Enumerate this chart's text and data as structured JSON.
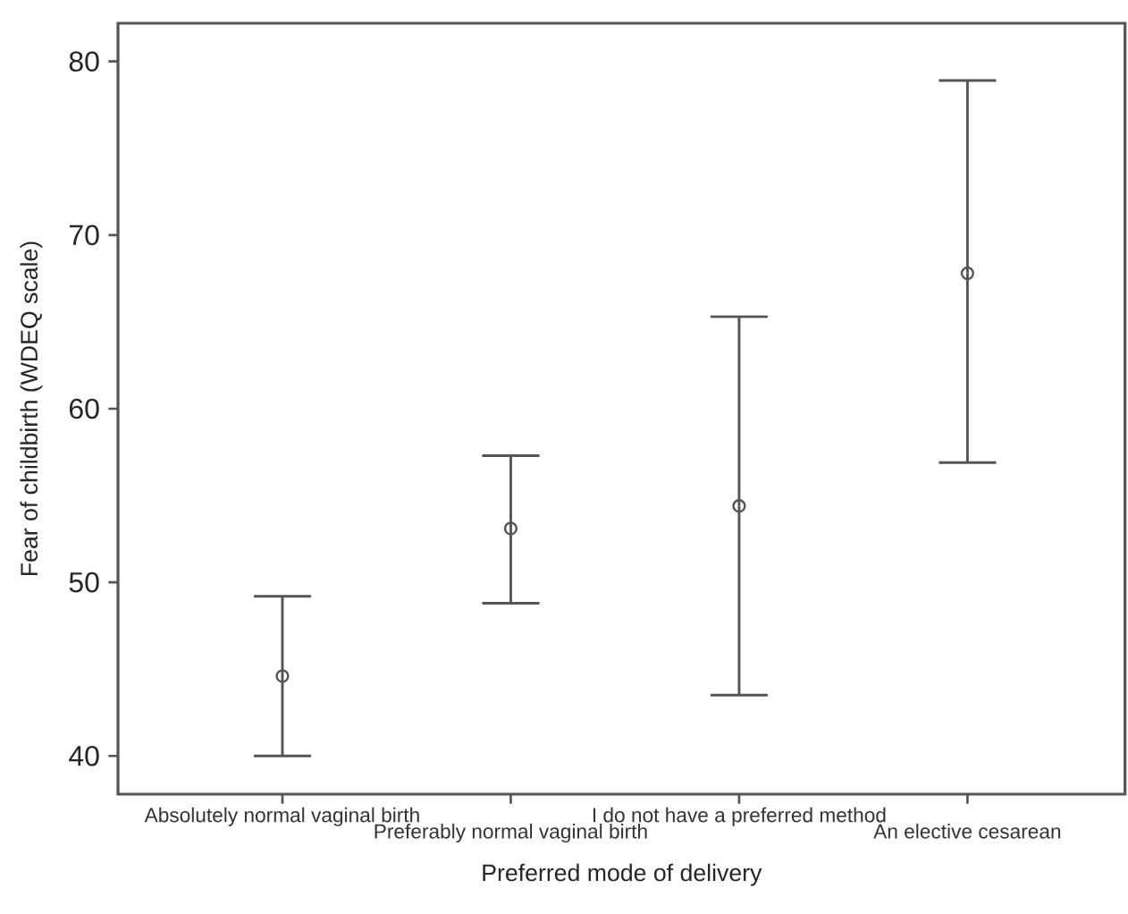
{
  "chart_data": {
    "type": "scatter",
    "xlabel": "Preferred mode of delivery",
    "ylabel": "Fear of childbirth (WDEQ scale)",
    "categories": [
      "Absolutely normal vaginal birth",
      "Preferably normal vaginal birth",
      "I do not have a preferred method",
      "An elective cesarean"
    ],
    "values": [
      44.6,
      53.1,
      54.4,
      67.8
    ],
    "errors": [
      [
        40.0,
        49.2
      ],
      [
        48.8,
        57.3
      ],
      [
        43.5,
        65.3
      ],
      [
        56.9,
        78.9
      ]
    ],
    "color": "#555555",
    "marker": "circle",
    "ylim": [
      37.8,
      82.2
    ],
    "yticks": [
      40,
      50,
      60,
      70,
      80
    ]
  }
}
